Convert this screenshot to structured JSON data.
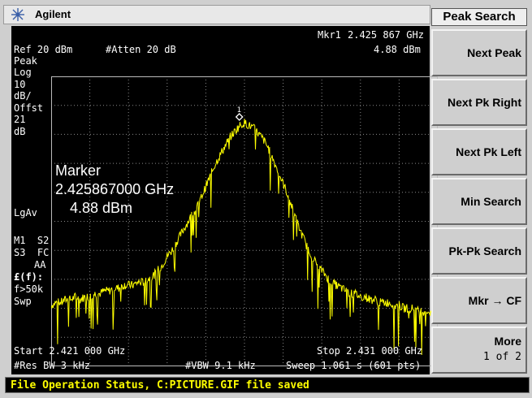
{
  "titlebar": {
    "brand": "Agilent",
    "logo_icon": "agilent-spark-icon"
  },
  "screen": {
    "marker_readout": {
      "label": "Mkr1",
      "freq": "2.425 867 GHz",
      "amp": "4.88 dBm"
    },
    "ref_level": "Ref 20 dBm",
    "atten": "#Atten 20 dB",
    "left_annotations": [
      "Peak",
      "Log",
      "10",
      "dB/",
      "Offst",
      "21",
      "dB"
    ],
    "lgav": "LgAv",
    "m1_s2": "M1  S2",
    "s3_fc": "S3  FC",
    "aa": "AA",
    "fcond": "£(f):",
    "f50k": "f>50k",
    "swp": "Swp",
    "marker_box": {
      "title": "Marker",
      "freq": "2.425867000 GHz",
      "amp": "4.88 dBm"
    },
    "marker_number": "1",
    "start": "Start 2.421 000 GHz",
    "stop": "Stop 2.431 000 GHz",
    "res_bw": "#Res BW 3 kHz",
    "vbw": "#VBW 9.1 kHz",
    "sweep": "Sweep 1.061 s (601 pts)"
  },
  "softkeys": {
    "title": "Peak Search",
    "keys": [
      {
        "label": "Next Peak"
      },
      {
        "label": "Next Pk Right"
      },
      {
        "label": "Next Pk Left"
      },
      {
        "label": "Min Search"
      },
      {
        "label": "Pk-Pk Search"
      },
      {
        "label": "Mkr → CF"
      },
      {
        "label": "More",
        "sub": "1 of 2"
      }
    ]
  },
  "status": "File Operation Status, C:PICTURE.GIF file saved",
  "colors": {
    "trace": "#ffff00",
    "screen_bg": "#000000",
    "grid": "#8a8a8a"
  },
  "chart_data": {
    "type": "line",
    "x_start_ghz": 2.421,
    "x_stop_ghz": 2.431,
    "ref_dbm": 20,
    "db_per_div": 10,
    "divisions": 10,
    "peak": {
      "freq_ghz": 2.425867,
      "amp_dbm": 4.88
    },
    "trace_dbm": [
      -59,
      -58,
      -58,
      -57,
      -57,
      -56,
      -57,
      -56,
      -56,
      -55,
      -55,
      -54,
      -54,
      -53,
      -53,
      -52,
      -52,
      -52,
      -51,
      -51,
      -50,
      -49,
      -47,
      -45,
      -42,
      -40,
      -37,
      -34,
      -31,
      -28,
      -26,
      -22,
      -18,
      -14,
      -10,
      -7,
      -4,
      -1,
      1,
      3,
      4,
      3,
      2,
      0,
      -2,
      -5,
      -9,
      -13,
      -17,
      -21,
      -26,
      -31,
      -35,
      -39,
      -42,
      -45,
      -47,
      -49,
      -51,
      -52,
      -53,
      -54,
      -55,
      -55,
      -56,
      -56,
      -57,
      -57,
      -58,
      -58,
      -58,
      -59,
      -59,
      -60,
      -60,
      -60,
      -61,
      -61,
      -61,
      -62,
      -62
    ]
  }
}
